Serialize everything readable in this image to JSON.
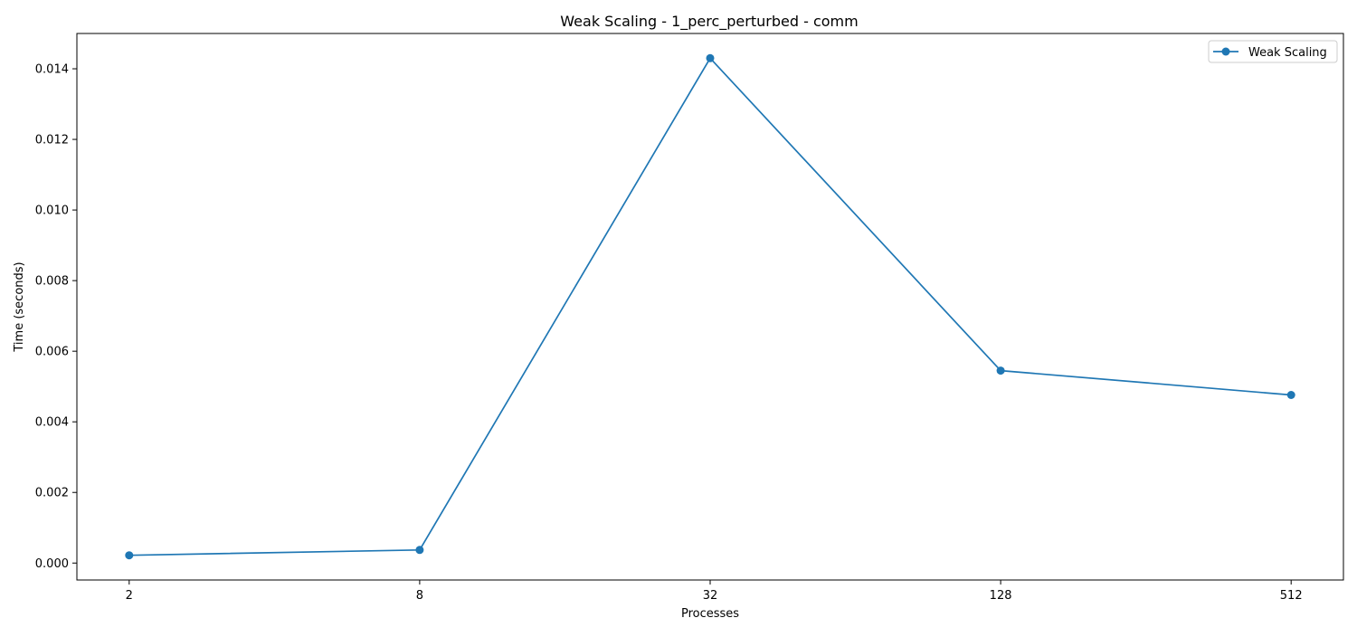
{
  "chart_data": {
    "type": "line",
    "title": "Weak Scaling - 1_perc_perturbed - comm",
    "xlabel": "Processes",
    "ylabel": "Time (seconds)",
    "x_scale": "log2",
    "categories": [
      "2",
      "8",
      "32",
      "128",
      "512"
    ],
    "x": [
      2,
      8,
      32,
      128,
      512
    ],
    "ylim": [
      -0.00048,
      0.015
    ],
    "yticks": [
      0.0,
      0.002,
      0.004,
      0.006,
      0.008,
      0.01,
      0.012,
      0.014
    ],
    "ytick_labels": [
      "0.000",
      "0.002",
      "0.004",
      "0.006",
      "0.008",
      "0.010",
      "0.012",
      "0.014"
    ],
    "grid": false,
    "legend_position": "top-right",
    "series": [
      {
        "name": "Weak Scaling",
        "color": "#1f77b4",
        "marker": "circle",
        "values": [
          0.00022,
          0.00037,
          0.0143,
          0.00545,
          0.00476
        ]
      }
    ]
  }
}
